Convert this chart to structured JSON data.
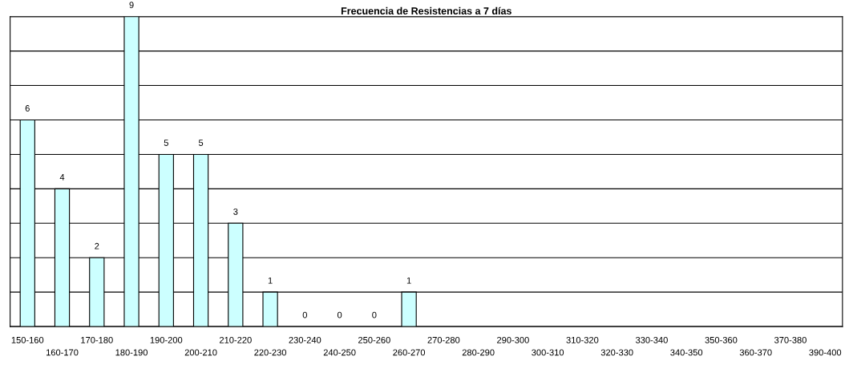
{
  "chart_data": {
    "type": "bar",
    "title": "Frecuencia de Resistencias a 7 días",
    "categories": [
      "150-160",
      "160-170",
      "170-180",
      "180-190",
      "190-200",
      "200-210",
      "210-220",
      "220-230",
      "230-240",
      "240-250",
      "250-260",
      "260-270",
      "270-280",
      "280-290",
      "290-300",
      "300-310",
      "310-320",
      "320-330",
      "330-340",
      "340-350",
      "350-360",
      "360-370",
      "370-380",
      "390-400"
    ],
    "values": [
      6,
      4,
      2,
      9,
      5,
      5,
      3,
      1,
      0,
      0,
      0,
      1,
      null,
      null,
      null,
      null,
      null,
      null,
      null,
      null,
      null,
      null,
      null,
      null
    ],
    "color": "#ccffff",
    "ylim": [
      0,
      9
    ],
    "yticks": [
      {
        "value": 0,
        "label": null
      },
      {
        "value": 1,
        "label": null
      },
      {
        "value": 2,
        "label": null
      },
      {
        "value": 3,
        "label": null
      },
      {
        "value": 4,
        "label": null
      },
      {
        "value": 5,
        "label": null
      },
      {
        "value": 6,
        "label": null
      },
      {
        "value": 7,
        "label": null
      },
      {
        "value": 8,
        "label": null
      },
      {
        "value": 9,
        "label": null
      }
    ],
    "grid": "y",
    "data_labels": true,
    "legend": false
  }
}
